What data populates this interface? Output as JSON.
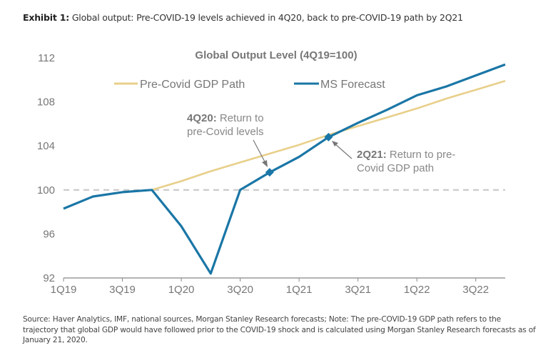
{
  "exhibit": {
    "label": "Exhibit 1:",
    "text": " Global output: Pre-COVID-19 levels achieved in 4Q20, back to pre-COVID-19 path by 2Q21"
  },
  "footnote": "Source: Haver Analytics, IMF, national sources, Morgan Stanley Research forecasts; Note: The pre-COVID-19 GDP path refers to the trajectory that global GDP would have followed prior to the COVID-19 shock and is calculated using Morgan Stanley Research forecasts as of January 21, 2020.",
  "chart_data": {
    "type": "line",
    "title": "Global Output Level (4Q19=100)",
    "xlabel": "",
    "ylabel": "",
    "x": [
      "1Q19",
      "2Q19",
      "3Q19",
      "4Q19",
      "1Q20",
      "2Q20",
      "3Q20",
      "4Q20",
      "1Q21",
      "2Q21",
      "3Q21",
      "4Q21",
      "1Q22",
      "2Q22",
      "3Q22",
      "4Q22"
    ],
    "x_tick_labels": [
      "1Q19",
      "3Q19",
      "1Q20",
      "3Q20",
      "1Q21",
      "3Q21",
      "1Q22",
      "3Q22"
    ],
    "ylim": [
      92,
      112
    ],
    "y_ticks": [
      92,
      96,
      100,
      104,
      108,
      112
    ],
    "grid": false,
    "reference_line": {
      "value": 100,
      "style": "dashed",
      "color": "#c8c8c8"
    },
    "legend": "top",
    "series": [
      {
        "name": "Pre-Covid GDP Path",
        "color": "#e8cf8a",
        "values": [
          null,
          null,
          null,
          100.0,
          100.8,
          101.7,
          102.5,
          103.3,
          104.1,
          105.0,
          105.8,
          106.6,
          107.4,
          108.3,
          109.1,
          109.9
        ]
      },
      {
        "name": "MS Forecast",
        "color": "#1a76a6",
        "values": [
          98.3,
          99.4,
          99.8,
          100.0,
          96.7,
          92.4,
          100.0,
          101.6,
          103.0,
          104.8,
          106.1,
          107.3,
          108.6,
          109.4,
          110.4,
          111.4
        ]
      }
    ],
    "markers": [
      {
        "series": "MS Forecast",
        "x": "4Q20",
        "value": 101.6
      },
      {
        "series": "MS Forecast",
        "x": "2Q21",
        "value": 104.8
      }
    ],
    "annotations": [
      {
        "bold": "4Q20:",
        "lines": [
          " Return to",
          "pre-Covid levels"
        ],
        "target": "4Q20"
      },
      {
        "bold": "2Q21:",
        "lines": [
          " Return to pre-",
          "Covid GDP path"
        ],
        "target": "2Q21"
      }
    ]
  }
}
